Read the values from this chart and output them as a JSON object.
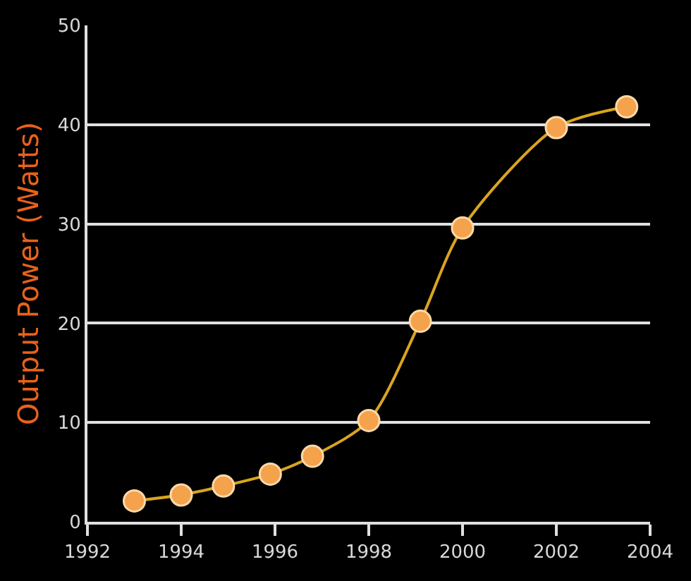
{
  "chart_data": {
    "type": "line",
    "ylabel": "Output Power (Watts)",
    "x": [
      1993.0,
      1994.0,
      1994.9,
      1995.9,
      1996.8,
      1998.0,
      1999.1,
      2000.0,
      2002.0,
      2003.5
    ],
    "series": [
      {
        "color": "#d9a520",
        "values": [
          2.1,
          2.7,
          3.6,
          4.8,
          6.6,
          10.2,
          20.2,
          29.6,
          39.7,
          41.8
        ]
      }
    ],
    "marker": "circle",
    "xlim": [
      1992,
      2004
    ],
    "xticks": [
      1992,
      1994,
      1996,
      1998,
      2000,
      2002,
      2004
    ],
    "ylim": [
      0,
      50
    ],
    "yticks": [
      0,
      10,
      20,
      30,
      40,
      50
    ],
    "grid": "y"
  }
}
